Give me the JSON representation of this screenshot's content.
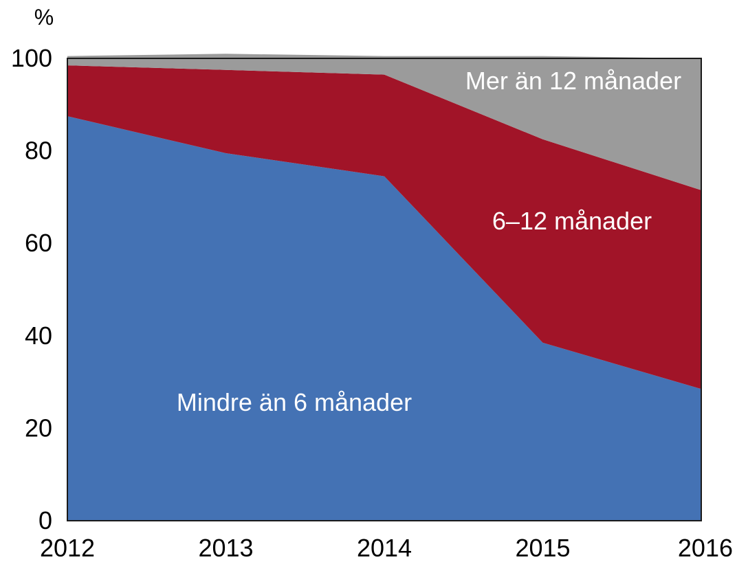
{
  "chart_data": {
    "type": "area",
    "stacked": true,
    "unit": "%",
    "x": [
      "2012",
      "2013",
      "2014",
      "2015",
      "2016"
    ],
    "series": [
      {
        "name": "Mindre än 6 månader",
        "color": "#4472B4",
        "values": [
          87.5,
          79.5,
          74.5,
          38.5,
          28.5
        ]
      },
      {
        "name": "6–12 månader",
        "color": "#A11428",
        "values": [
          11,
          18,
          22,
          44,
          43
        ]
      },
      {
        "name": "Mer än 12 månader",
        "color": "#9B9B9B",
        "values": [
          2,
          3.5,
          4,
          18,
          28.5
        ]
      }
    ],
    "ylim": [
      0,
      100
    ],
    "yticks": [
      "0",
      "20",
      "40",
      "60",
      "80",
      "100"
    ],
    "grid": false,
    "legend": "inline labels"
  }
}
